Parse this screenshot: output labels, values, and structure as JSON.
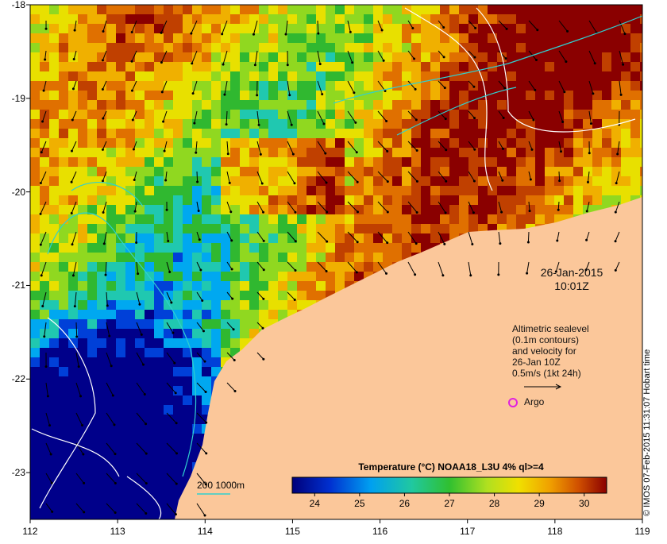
{
  "map": {
    "x_ticks": [
      "112",
      "113",
      "114",
      "115",
      "116",
      "117",
      "118",
      "119"
    ],
    "y_ticks": [
      "-18",
      "-19",
      "-20",
      "-21",
      "-22",
      "-23"
    ],
    "lon_range": [
      112,
      119
    ],
    "lat_range": [
      -23.5,
      -18
    ]
  },
  "timestamp": {
    "date": "26-Jan-2015",
    "time": "10:01Z"
  },
  "altimetry_legend": {
    "line1": "Altimetric sealevel",
    "line2": "(0.1m contours)",
    "line3": "and velocity for",
    "line4": "26-Jan 10Z",
    "line5": "0.5m/s (1kt 24h)"
  },
  "argo": {
    "label": "Argo",
    "color": "#e020e0"
  },
  "colorbar": {
    "title": "Temperature (°C) NOAA18_L3U 4% ql>=4",
    "ticks": [
      "24",
      "25",
      "26",
      "27",
      "28",
      "29",
      "30"
    ]
  },
  "bathymetry": {
    "label": "200  1000m",
    "color": "#2fd0d0"
  },
  "credit": "© IMOS 07-Feb-2015 11:31:07 Hobart time",
  "colors": {
    "land": "#fbc79a",
    "frame": "#000000"
  }
}
